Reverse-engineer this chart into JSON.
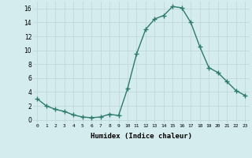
{
  "x": [
    0,
    1,
    2,
    3,
    4,
    5,
    6,
    7,
    8,
    9,
    10,
    11,
    12,
    13,
    14,
    15,
    16,
    17,
    18,
    19,
    20,
    21,
    22,
    23
  ],
  "y": [
    3.0,
    2.0,
    1.5,
    1.2,
    0.7,
    0.4,
    0.3,
    0.4,
    0.8,
    0.6,
    4.5,
    9.5,
    13.0,
    14.5,
    15.0,
    16.3,
    16.1,
    14.0,
    10.5,
    7.5,
    6.8,
    5.5,
    4.2,
    3.5
  ],
  "line_color": "#2d7a6e",
  "marker": "+",
  "marker_size": 4,
  "bg_color": "#d4ecee",
  "grid_color": "#c0d8da",
  "xlabel": "Humidex (Indice chaleur)",
  "ylim": [
    -0.5,
    17
  ],
  "xlim": [
    -0.5,
    23.5
  ],
  "yticks": [
    0,
    2,
    4,
    6,
    8,
    10,
    12,
    14,
    16
  ],
  "xticks": [
    0,
    1,
    2,
    3,
    4,
    5,
    6,
    7,
    8,
    9,
    10,
    11,
    12,
    13,
    14,
    15,
    16,
    17,
    18,
    19,
    20,
    21,
    22,
    23
  ]
}
